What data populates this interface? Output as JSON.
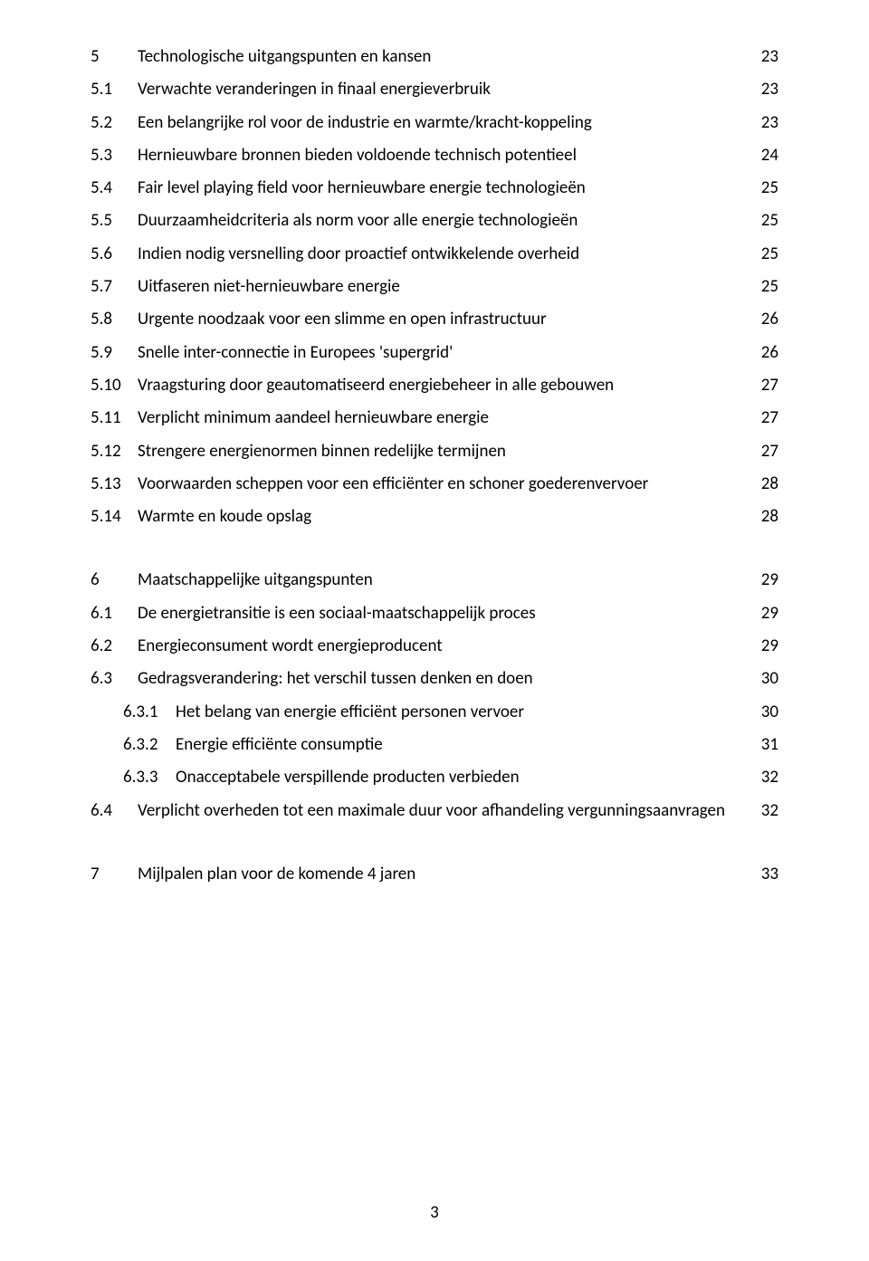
{
  "sections": [
    {
      "num": "5",
      "title": "Technologische uitgangspunten en kansen",
      "page": "23",
      "level": 0,
      "items": [
        {
          "num": "5.1",
          "title": "Verwachte veranderingen in finaal energieverbruik",
          "page": "23",
          "level": 1
        },
        {
          "num": "5.2",
          "title": "Een belangrijke rol voor de industrie en warmte/kracht-koppeling",
          "page": "23",
          "level": 1
        },
        {
          "num": "5.3",
          "title": "Hernieuwbare bronnen bieden voldoende technisch potentieel",
          "page": "24",
          "level": 1
        },
        {
          "num": "5.4",
          "title": "Fair level playing field voor hernieuwbare energie technologieën",
          "page": "25",
          "level": 1
        },
        {
          "num": "5.5",
          "title": "Duurzaamheidcriteria als norm voor alle energie technologieën",
          "page": "25",
          "level": 1
        },
        {
          "num": "5.6",
          "title": "Indien nodig versnelling door proactief ontwikkelende overheid",
          "page": "25",
          "level": 1
        },
        {
          "num": "5.7",
          "title": "Uitfaseren niet-hernieuwbare energie",
          "page": "25",
          "level": 1
        },
        {
          "num": "5.8",
          "title": "Urgente noodzaak voor een slimme en open infrastructuur",
          "page": "26",
          "level": 1
        },
        {
          "num": "5.9",
          "title": "Snelle inter-connectie in Europees 'supergrid'",
          "page": "26",
          "level": 1
        },
        {
          "num": "5.10",
          "title": "Vraagsturing door geautomatiseerd energiebeheer in alle gebouwen",
          "page": "27",
          "level": 1
        },
        {
          "num": "5.11",
          "title": "Verplicht minimum aandeel hernieuwbare energie",
          "page": "27",
          "level": 1
        },
        {
          "num": "5.12",
          "title": "Strengere energienormen binnen redelijke termijnen",
          "page": "27",
          "level": 1
        },
        {
          "num": "5.13",
          "title": "Voorwaarden scheppen voor een efficiënter en schoner goederenvervoer",
          "page": "28",
          "level": 1
        },
        {
          "num": "5.14",
          "title": "Warmte en koude opslag",
          "page": "28",
          "level": 1
        }
      ]
    },
    {
      "num": "6",
      "title": "Maatschappelijke uitgangspunten",
      "page": "29",
      "level": 0,
      "items": [
        {
          "num": "6.1",
          "title": "De energietransitie is een sociaal-maatschappelijk proces",
          "page": "29",
          "level": 1
        },
        {
          "num": "6.2",
          "title": "Energieconsument wordt energieproducent",
          "page": "29",
          "level": 1
        },
        {
          "num": "6.3",
          "title": "Gedragsverandering: het verschil tussen denken en doen",
          "page": "30",
          "level": 1
        },
        {
          "num": "6.3.1",
          "title": "Het belang van energie efficiënt personen vervoer",
          "page": "30",
          "level": 2
        },
        {
          "num": "6.3.2",
          "title": "Energie efficiënte consumptie",
          "page": "31",
          "level": 2
        },
        {
          "num": "6.3.3",
          "title": "Onacceptabele verspillende producten verbieden",
          "page": "32",
          "level": 2
        },
        {
          "num": "6.4",
          "title": "Verplicht overheden tot een maximale duur voor afhandeling vergunningsaanvragen",
          "page": "32",
          "level": 1
        }
      ]
    },
    {
      "num": "7",
      "title": "Mijlpalen plan voor de komende 4 jaren",
      "page": "33",
      "level": 0,
      "items": []
    }
  ],
  "pageNumber": "3"
}
